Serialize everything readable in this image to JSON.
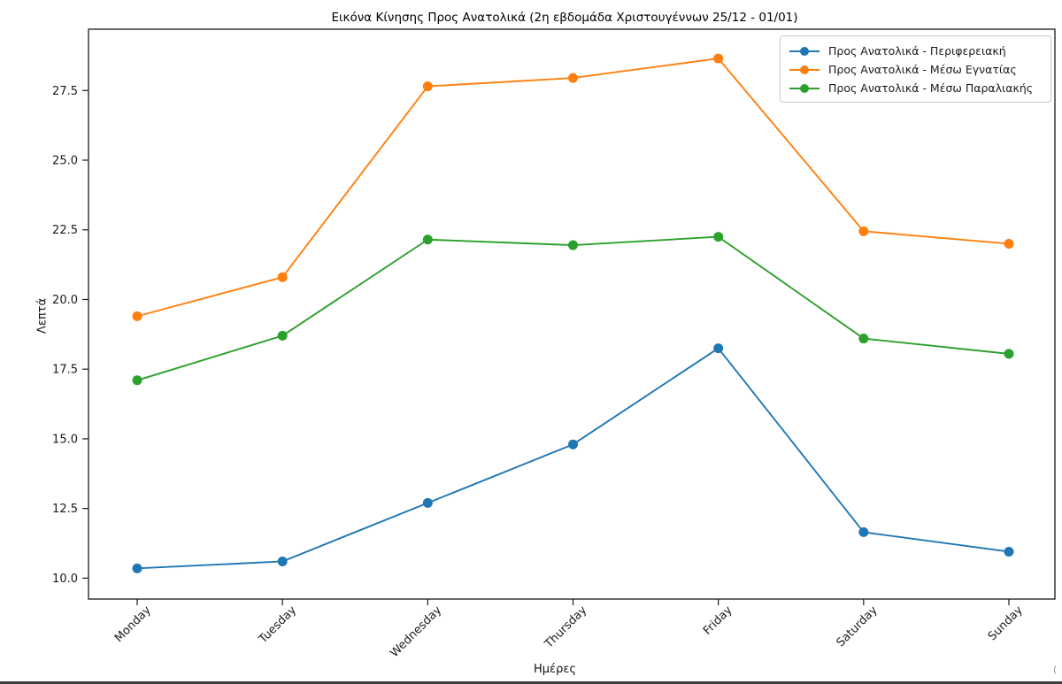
{
  "page": {
    "background": "#ffffff",
    "bottom_edge_color": "#3d3d3d",
    "corner_mark": "("
  },
  "chart_data": {
    "type": "line",
    "title": "Εικόνα Κίνησης Προς Ανατολικά (2η εβδομάδα Χριστουγέννων 25/12 - 01/01)",
    "xlabel": "Ημέρες",
    "ylabel": "Λεπτά",
    "categories": [
      "Monday",
      "Tuesday",
      "Wednesday",
      "Thursday",
      "Friday",
      "Saturday",
      "Sunday"
    ],
    "series": [
      {
        "name": "Προς Ανατολικά - Περιφερειακή",
        "color": "#1f77b4",
        "values": [
          10.35,
          10.6,
          12.7,
          14.8,
          18.25,
          11.65,
          10.95
        ]
      },
      {
        "name": "Προς Ανατολικά - Μέσω Εγνατίας",
        "color": "#ff7f0e",
        "values": [
          19.4,
          20.8,
          27.65,
          27.95,
          28.65,
          22.45,
          22.0
        ]
      },
      {
        "name": "Προς Ανατολικά - Μέσω Παραλιακής",
        "color": "#2ca02c",
        "values": [
          17.1,
          18.7,
          22.15,
          21.95,
          22.25,
          18.6,
          18.05
        ]
      }
    ],
    "yticks": [
      10.0,
      12.5,
      15.0,
      17.5,
      20.0,
      22.5,
      25.0,
      27.5
    ],
    "ytick_labels": [
      "10.0",
      "12.5",
      "15.0",
      "17.5",
      "20.0",
      "22.5",
      "25.0",
      "27.5"
    ],
    "ylim": [
      9.25,
      29.7
    ],
    "grid": false,
    "legend_position": "upper right",
    "marker": "o",
    "axis_color": "#1a1a1a",
    "tick_label_color": "#1a1a1a"
  }
}
